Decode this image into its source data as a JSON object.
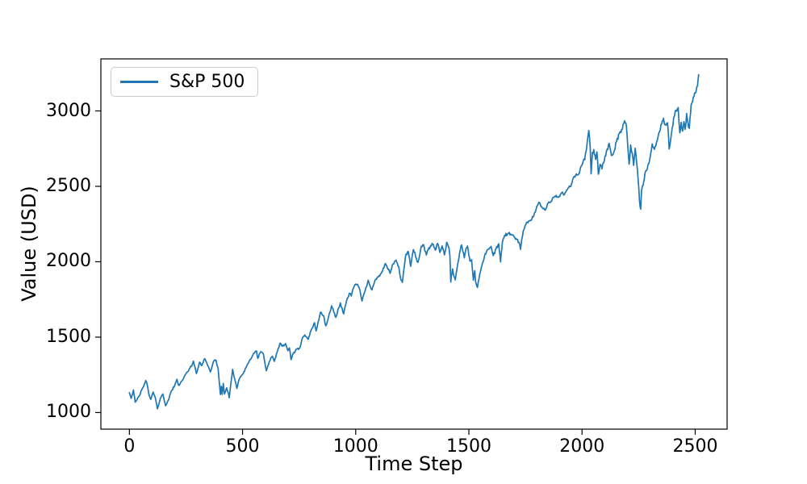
{
  "figure": {
    "background": "#ffffff"
  },
  "chart_data": {
    "type": "line",
    "title": "",
    "xlabel": "Time Step",
    "ylabel": "Value (USD)",
    "grid": false,
    "legend_position": "upper left",
    "x_ticks": [
      0,
      500,
      1000,
      1500,
      2000,
      2500
    ],
    "y_ticks": [
      1000,
      1500,
      2000,
      2500,
      3000
    ],
    "xlim": [
      -126,
      2641
    ],
    "ylim": [
      890,
      3345
    ],
    "x_data_range": [
      0,
      2515
    ],
    "y_data_range": [
      1023,
      3240
    ],
    "noise": {
      "seed": 42,
      "amplitude": 13,
      "sample_step": 3
    },
    "series": [
      {
        "name": "S&P 500",
        "color": "#1f77b4",
        "anchors": [
          [
            0,
            1133
          ],
          [
            8,
            1095
          ],
          [
            18,
            1150
          ],
          [
            26,
            1066
          ],
          [
            45,
            1115
          ],
          [
            60,
            1166
          ],
          [
            72,
            1210
          ],
          [
            78,
            1192
          ],
          [
            85,
            1128
          ],
          [
            95,
            1087
          ],
          [
            105,
            1135
          ],
          [
            115,
            1095
          ],
          [
            124,
            1023
          ],
          [
            137,
            1096
          ],
          [
            148,
            1122
          ],
          [
            160,
            1047
          ],
          [
            172,
            1080
          ],
          [
            185,
            1142
          ],
          [
            200,
            1178
          ],
          [
            210,
            1220
          ],
          [
            218,
            1180
          ],
          [
            232,
            1210
          ],
          [
            251,
            1258
          ],
          [
            265,
            1290
          ],
          [
            276,
            1310
          ],
          [
            283,
            1343
          ],
          [
            296,
            1257
          ],
          [
            310,
            1332
          ],
          [
            320,
            1312
          ],
          [
            332,
            1360
          ],
          [
            342,
            1330
          ],
          [
            358,
            1268
          ],
          [
            372,
            1340
          ],
          [
            383,
            1345
          ],
          [
            392,
            1292
          ],
          [
            397,
            1200
          ],
          [
            402,
            1119
          ],
          [
            406,
            1173
          ],
          [
            410,
            1121
          ],
          [
            415,
            1193
          ],
          [
            420,
            1124
          ],
          [
            430,
            1162
          ],
          [
            437,
            1131
          ],
          [
            441,
            1099
          ],
          [
            456,
            1285
          ],
          [
            465,
            1224
          ],
          [
            475,
            1159
          ],
          [
            485,
            1220
          ],
          [
            495,
            1245
          ],
          [
            503,
            1258
          ],
          [
            512,
            1290
          ],
          [
            530,
            1343
          ],
          [
            548,
            1390
          ],
          [
            562,
            1408
          ],
          [
            567,
            1358
          ],
          [
            580,
            1403
          ],
          [
            592,
            1390
          ],
          [
            605,
            1278
          ],
          [
            615,
            1320
          ],
          [
            625,
            1362
          ],
          [
            632,
            1374
          ],
          [
            640,
            1338
          ],
          [
            652,
            1395
          ],
          [
            666,
            1460
          ],
          [
            678,
            1442
          ],
          [
            690,
            1455
          ],
          [
            700,
            1412
          ],
          [
            707,
            1428
          ],
          [
            714,
            1353
          ],
          [
            724,
            1390
          ],
          [
            736,
            1416
          ],
          [
            753,
            1426
          ],
          [
            765,
            1495
          ],
          [
            775,
            1513
          ],
          [
            790,
            1488
          ],
          [
            805,
            1555
          ],
          [
            818,
            1593
          ],
          [
            825,
            1542
          ],
          [
            845,
            1667
          ],
          [
            858,
            1640
          ],
          [
            868,
            1573
          ],
          [
            880,
            1632
          ],
          [
            893,
            1706
          ],
          [
            900,
            1685
          ],
          [
            912,
            1630
          ],
          [
            925,
            1695
          ],
          [
            932,
            1725
          ],
          [
            940,
            1690
          ],
          [
            947,
            1655
          ],
          [
            960,
            1744
          ],
          [
            972,
            1791
          ],
          [
            980,
            1775
          ],
          [
            993,
            1838
          ],
          [
            1005,
            1848
          ],
          [
            1015,
            1832
          ],
          [
            1028,
            1742
          ],
          [
            1042,
            1810
          ],
          [
            1055,
            1878
          ],
          [
            1062,
            1846
          ],
          [
            1072,
            1816
          ],
          [
            1085,
            1875
          ],
          [
            1100,
            1900
          ],
          [
            1112,
            1924
          ],
          [
            1125,
            1960
          ],
          [
            1131,
            1985
          ],
          [
            1140,
            1960
          ],
          [
            1152,
            1925
          ],
          [
            1165,
            1987
          ],
          [
            1178,
            2007
          ],
          [
            1190,
            1966
          ],
          [
            1200,
            1875
          ],
          [
            1206,
            1862
          ],
          [
            1220,
            2040
          ],
          [
            1232,
            2068
          ],
          [
            1243,
            1973
          ],
          [
            1255,
            2082
          ],
          [
            1268,
            2020
          ],
          [
            1275,
            1993
          ],
          [
            1290,
            2100
          ],
          [
            1300,
            2114
          ],
          [
            1312,
            2045
          ],
          [
            1320,
            2080
          ],
          [
            1332,
            2108
          ],
          [
            1340,
            2118
          ],
          [
            1352,
            2080
          ],
          [
            1362,
            2124
          ],
          [
            1372,
            2060
          ],
          [
            1382,
            2108
          ],
          [
            1392,
            2046
          ],
          [
            1402,
            2128
          ],
          [
            1412,
            2096
          ],
          [
            1416,
            2036
          ],
          [
            1420,
            1868
          ],
          [
            1428,
            1950
          ],
          [
            1432,
            1914
          ],
          [
            1440,
            1882
          ],
          [
            1452,
            1995
          ],
          [
            1462,
            2080
          ],
          [
            1468,
            2108
          ],
          [
            1476,
            2060
          ],
          [
            1480,
            2023
          ],
          [
            1488,
            2090
          ],
          [
            1494,
            2102
          ],
          [
            1500,
            2040
          ],
          [
            1505,
            2005
          ],
          [
            1512,
            2012
          ],
          [
            1520,
            1880
          ],
          [
            1526,
            1940
          ],
          [
            1530,
            1865
          ],
          [
            1538,
            1829
          ],
          [
            1548,
            1918
          ],
          [
            1560,
            1990
          ],
          [
            1572,
            2050
          ],
          [
            1585,
            2080
          ],
          [
            1598,
            2100
          ],
          [
            1608,
            2040
          ],
          [
            1620,
            2090
          ],
          [
            1632,
            2115
          ],
          [
            1640,
            2001
          ],
          [
            1648,
            2130
          ],
          [
            1658,
            2175
          ],
          [
            1672,
            2184
          ],
          [
            1685,
            2180
          ],
          [
            1700,
            2165
          ],
          [
            1712,
            2150
          ],
          [
            1722,
            2126
          ],
          [
            1728,
            2085
          ],
          [
            1740,
            2200
          ],
          [
            1752,
            2250
          ],
          [
            1761,
            2260
          ],
          [
            1775,
            2275
          ],
          [
            1790,
            2320
          ],
          [
            1800,
            2365
          ],
          [
            1812,
            2396
          ],
          [
            1825,
            2355
          ],
          [
            1838,
            2342
          ],
          [
            1850,
            2390
          ],
          [
            1865,
            2400
          ],
          [
            1880,
            2438
          ],
          [
            1895,
            2430
          ],
          [
            1910,
            2460
          ],
          [
            1922,
            2442
          ],
          [
            1935,
            2478
          ],
          [
            1950,
            2500
          ],
          [
            1962,
            2560
          ],
          [
            1975,
            2580
          ],
          [
            1985,
            2575
          ],
          [
            1995,
            2630
          ],
          [
            2005,
            2665
          ],
          [
            2012,
            2674
          ],
          [
            2020,
            2750
          ],
          [
            2026,
            2832
          ],
          [
            2030,
            2873
          ],
          [
            2036,
            2762
          ],
          [
            2040,
            2581
          ],
          [
            2046,
            2720
          ],
          [
            2052,
            2740
          ],
          [
            2060,
            2680
          ],
          [
            2066,
            2728
          ],
          [
            2072,
            2582
          ],
          [
            2080,
            2650
          ],
          [
            2088,
            2615
          ],
          [
            2095,
            2655
          ],
          [
            2108,
            2730
          ],
          [
            2120,
            2780
          ],
          [
            2130,
            2705
          ],
          [
            2140,
            2720
          ],
          [
            2152,
            2800
          ],
          [
            2165,
            2853
          ],
          [
            2175,
            2875
          ],
          [
            2188,
            2931
          ],
          [
            2196,
            2905
          ],
          [
            2202,
            2770
          ],
          [
            2208,
            2650
          ],
          [
            2215,
            2770
          ],
          [
            2222,
            2720
          ],
          [
            2228,
            2635
          ],
          [
            2235,
            2750
          ],
          [
            2242,
            2650
          ],
          [
            2248,
            2545
          ],
          [
            2254,
            2400
          ],
          [
            2259,
            2351
          ],
          [
            2263,
            2468
          ],
          [
            2270,
            2510
          ],
          [
            2278,
            2582
          ],
          [
            2285,
            2600
          ],
          [
            2298,
            2670
          ],
          [
            2310,
            2780
          ],
          [
            2320,
            2745
          ],
          [
            2332,
            2805
          ],
          [
            2342,
            2860
          ],
          [
            2352,
            2920
          ],
          [
            2360,
            2946
          ],
          [
            2368,
            2905
          ],
          [
            2378,
            2925
          ],
          [
            2385,
            2752
          ],
          [
            2395,
            2850
          ],
          [
            2405,
            2950
          ],
          [
            2412,
            2996
          ],
          [
            2425,
            3026
          ],
          [
            2432,
            2850
          ],
          [
            2438,
            2920
          ],
          [
            2444,
            2865
          ],
          [
            2450,
            2925
          ],
          [
            2456,
            2880
          ],
          [
            2462,
            2980
          ],
          [
            2468,
            2915
          ],
          [
            2474,
            2890
          ],
          [
            2482,
            3038
          ],
          [
            2492,
            3094
          ],
          [
            2500,
            3120
          ],
          [
            2505,
            3140
          ],
          [
            2510,
            3169
          ],
          [
            2515,
            3240
          ]
        ]
      }
    ]
  }
}
